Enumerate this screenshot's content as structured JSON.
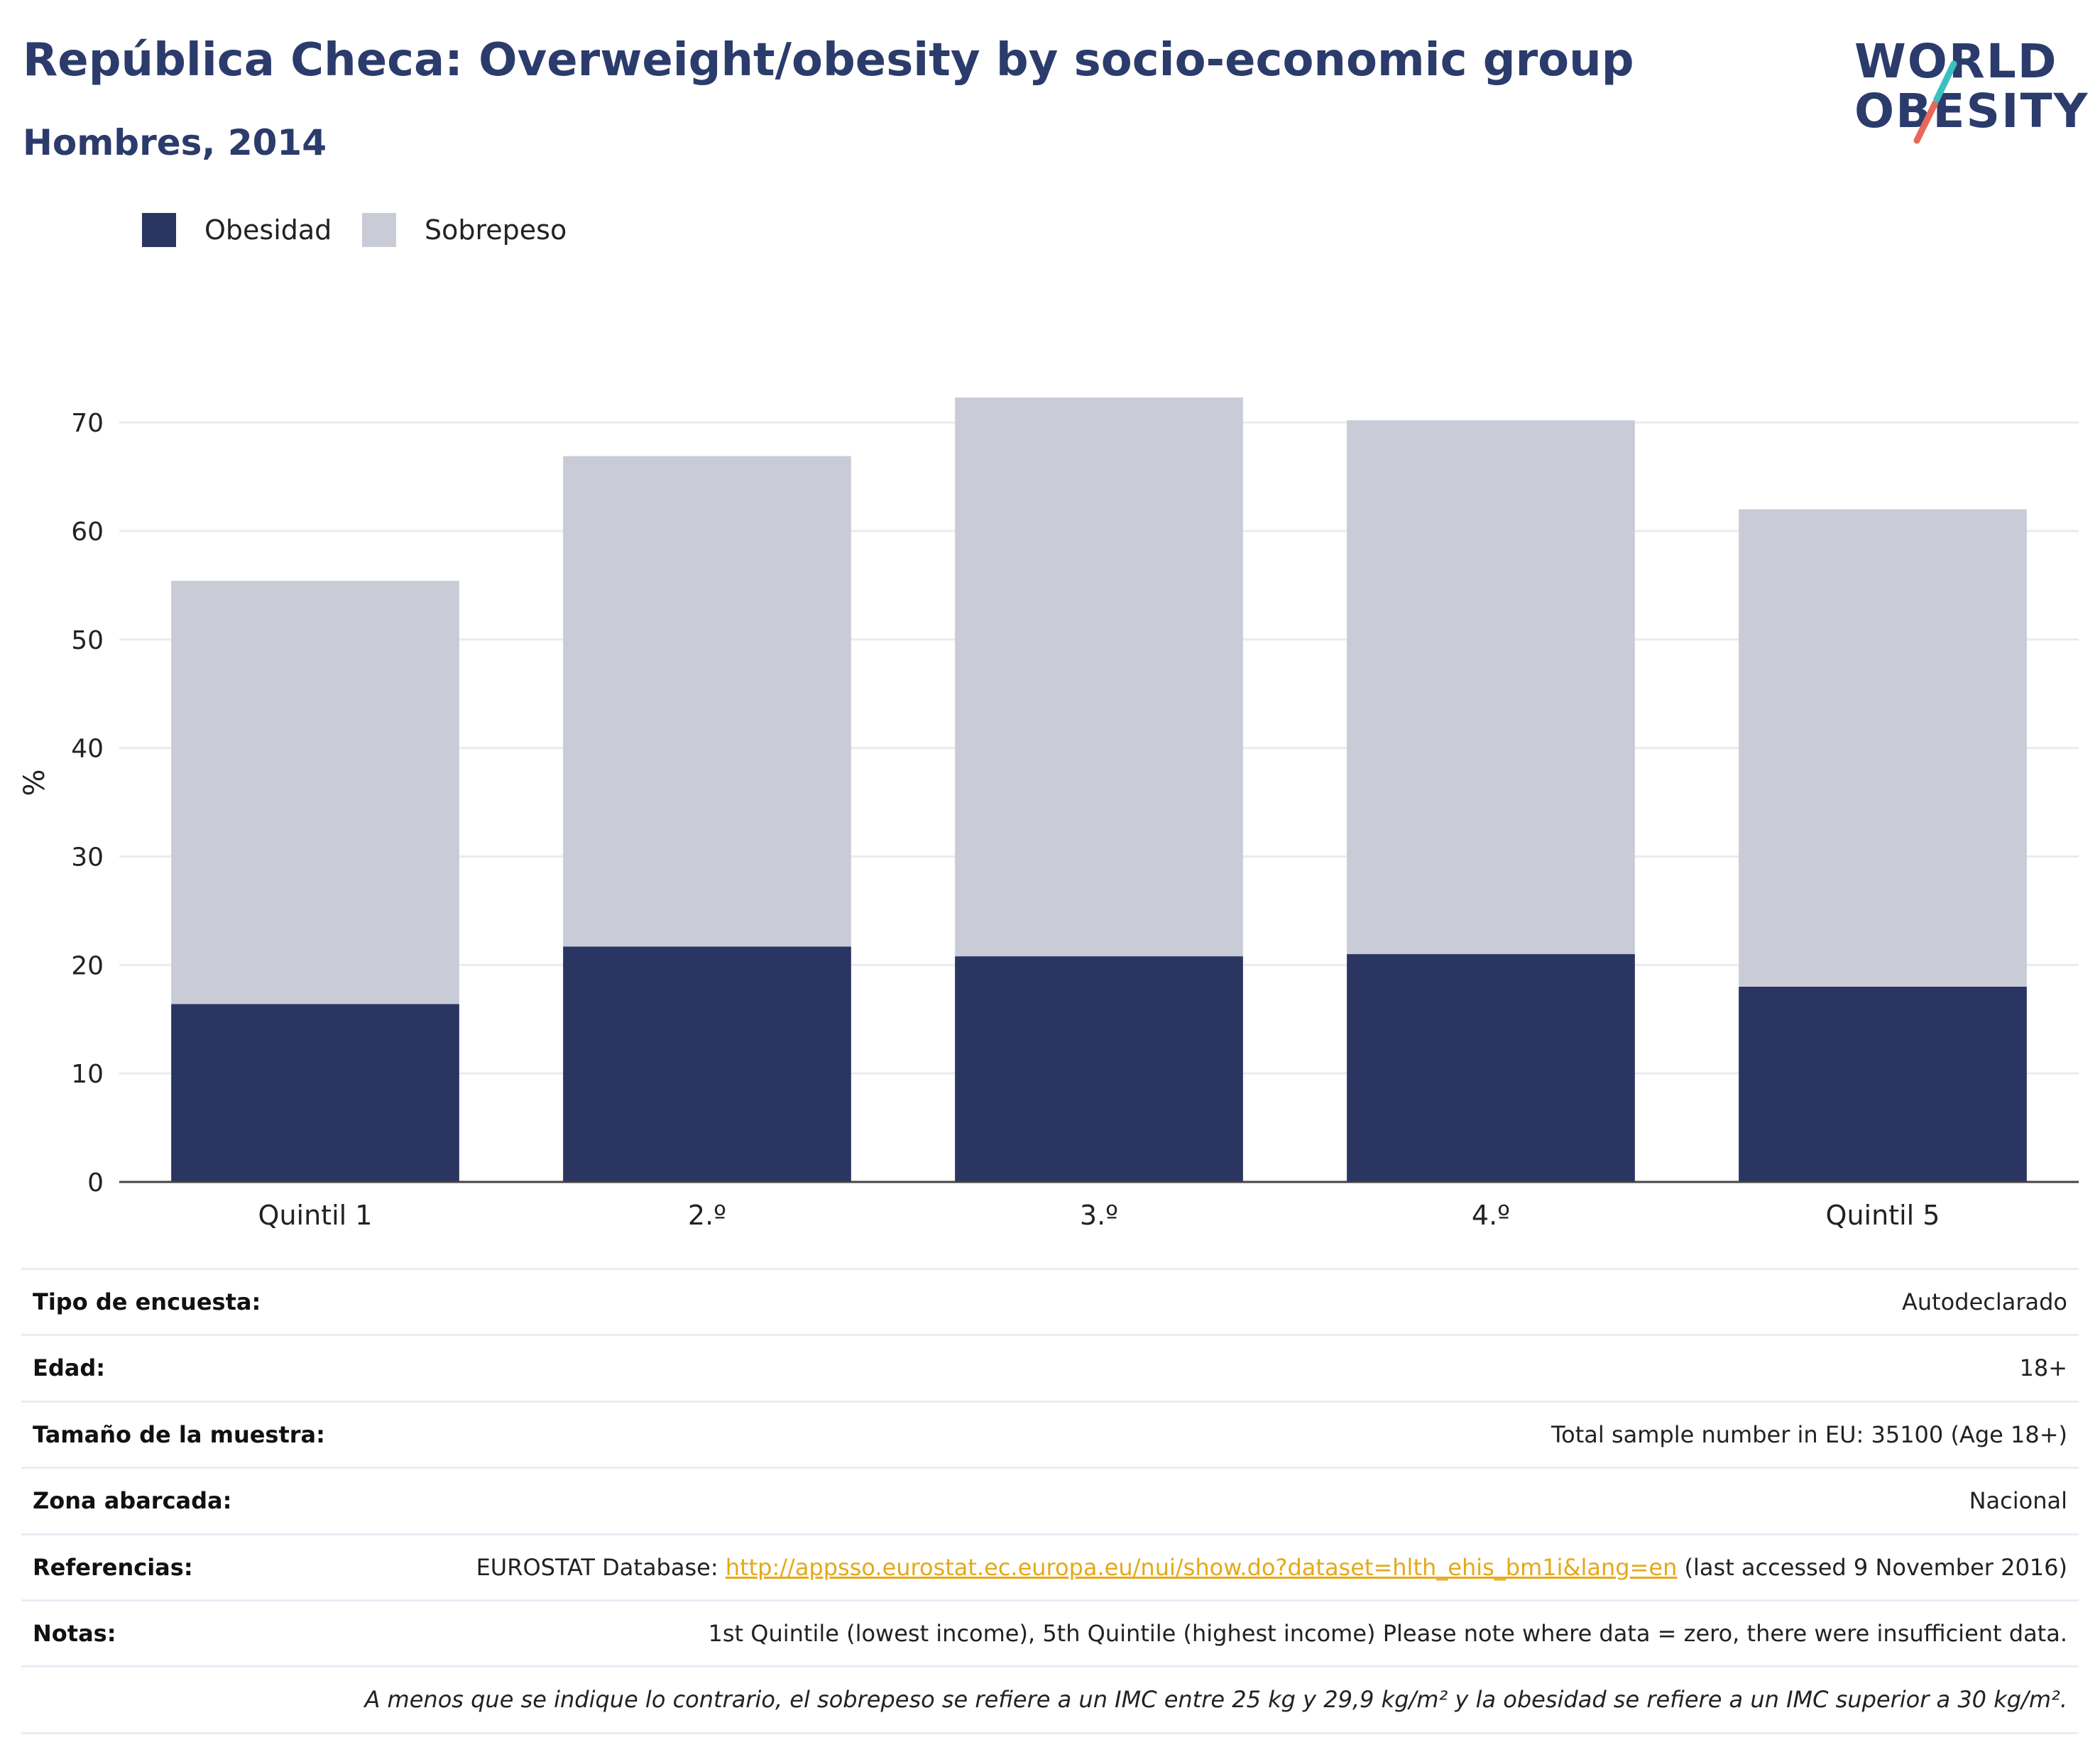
{
  "header": {
    "title": "República Checa: Overweight/obesity by socio-economic group",
    "subtitle": "Hombres, 2014",
    "logo_line1": "WORLD",
    "logo_line2": "OBESITY"
  },
  "legend": {
    "items": [
      {
        "label": "Obesidad",
        "color": "#2b3562"
      },
      {
        "label": "Sobrepeso",
        "color": "#c9cbd7"
      }
    ]
  },
  "chart_data": {
    "type": "bar",
    "stacked": true,
    "categories": [
      "Quintil 1",
      "2.º",
      "3.º",
      "4.º",
      "Quintil 5"
    ],
    "series": [
      {
        "name": "Obesidad",
        "values": [
          16.4,
          21.7,
          20.8,
          21.0,
          18.0
        ],
        "color": "#2b3562"
      },
      {
        "name": "Sobrepeso",
        "values": [
          39.0,
          45.2,
          51.5,
          49.2,
          44.0
        ],
        "color": "#c9cbd7"
      }
    ],
    "totals": [
      55.4,
      66.9,
      72.3,
      70.2,
      62.0
    ],
    "ylabel": "%",
    "ylim": [
      0,
      72.3
    ],
    "yticks": [
      0,
      10,
      20,
      30,
      40,
      50,
      60,
      70
    ],
    "grid": true,
    "legend_position": "top-left"
  },
  "info": {
    "survey_type_label": "Tipo de encuesta:",
    "survey_type_value": "Autodeclarado",
    "age_label": "Edad:",
    "age_value": "18+",
    "sample_label": "Tamaño de la muestra:",
    "sample_value": "Total sample number in EU: 35100 (Age 18+)",
    "area_label": "Zona abarcada:",
    "area_value": "Nacional",
    "references_label": "Referencias:",
    "references_prefix": "EUROSTAT Database:",
    "references_link": "http://appsso.eurostat.ec.europa.eu/nui/show.do?dataset=hlth_ehis_bm1i&lang=en",
    "references_suffix": "(last accessed 9 November 2016)",
    "notes_label": "Notas:",
    "notes_value": "1st Quintile (lowest income), 5th Quintile (highest income) Please note where data = zero, there were insufficient data.",
    "footnote": "A menos que se indique lo contrario, el sobrepeso se refiere a un IMC entre 25 kg y 29,9 kg/m² y la obesidad se refiere a un IMC superior a 30 kg/m²."
  }
}
